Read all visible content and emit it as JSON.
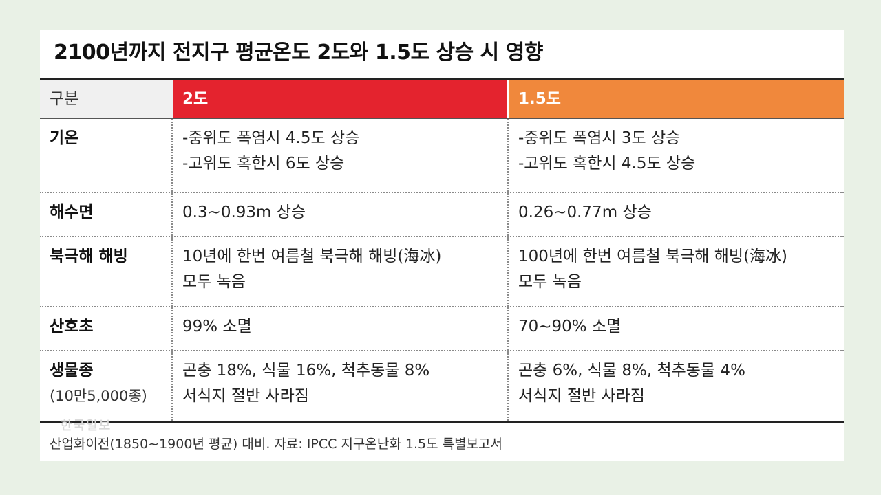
{
  "title": "2100년까지 전지구 평균온도 2도와 1.5도 상승 시 영향",
  "header": {
    "category": "구분",
    "col_2": "2도",
    "col_15": "1.5도"
  },
  "rows": [
    {
      "label": "기온",
      "sublabel": "",
      "col_2": [
        "-중위도 폭염시 4.5도 상승",
        "-고위도 혹한시 6도 상승"
      ],
      "col_15": [
        "-중위도 폭염시 3도 상승",
        "-고위도 혹한시 4.5도 상승"
      ]
    },
    {
      "label": "해수면",
      "sublabel": "",
      "col_2": [
        "0.3~0.93m 상승"
      ],
      "col_15": [
        "0.26~0.77m 상승"
      ]
    },
    {
      "label": "북극해 해빙",
      "sublabel": "",
      "col_2": [
        "10년에 한번 여름철 북극해 해빙(海冰)",
        "모두 녹음"
      ],
      "col_15": [
        "100년에 한번 여름철 북극해 해빙(海冰)",
        "모두 녹음"
      ]
    },
    {
      "label": "산호초",
      "sublabel": "",
      "col_2": [
        "99% 소멸"
      ],
      "col_15": [
        "70~90% 소멸"
      ]
    },
    {
      "label": "생물종",
      "sublabel": "(10만5,000종)",
      "col_2": [
        "곤충 18%, 식물 16%, 척추동물 8%",
        "서식지 절반 사라짐"
      ],
      "col_15": [
        "곤충 6%, 식물 8%, 척추동물 4%",
        "서식지 절반 사라짐"
      ]
    }
  ],
  "watermark": "한국일보",
  "footer": "산업화이전(1850~1900년 평균) 대비. 자료: IPCC 지구온난화 1.5도 특별보고서",
  "colors": {
    "col_2_header": "#e4232e",
    "col_15_header": "#f0883c",
    "category_header": "#f0f0f0"
  }
}
